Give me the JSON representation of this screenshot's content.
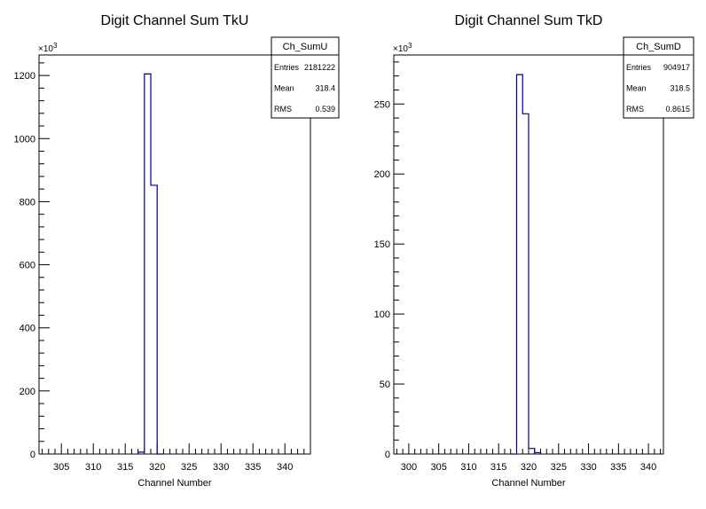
{
  "chart_data": [
    {
      "type": "bar",
      "histogram": true,
      "title": "Digit Channel Sum TkU",
      "xlabel": "Channel Number",
      "ylabel": "",
      "y_multiplier": "×10",
      "y_multiplier_exp": "3",
      "xlim": [
        301.5,
        344
      ],
      "ylim": [
        0,
        1265
      ],
      "x_ticks": [
        305,
        310,
        315,
        320,
        325,
        330,
        335,
        340
      ],
      "y_ticks": [
        0,
        200,
        400,
        600,
        800,
        1000,
        1200
      ],
      "bin_width": 1,
      "bins": [
        {
          "low": 317,
          "value": 6
        },
        {
          "low": 318,
          "value": 1205
        },
        {
          "low": 319,
          "value": 852
        },
        {
          "low": 320,
          "value": 0
        }
      ],
      "stats": {
        "name": "Ch_SumU",
        "rows": [
          {
            "label": "Entries",
            "value": "2181222"
          },
          {
            "label": "Mean",
            "value": "318.4"
          },
          {
            "label": "RMS",
            "value": "0.539"
          }
        ]
      },
      "line_color": "#000080"
    },
    {
      "type": "bar",
      "histogram": true,
      "title": "Digit Channel Sum TkD",
      "xlabel": "Channel Number",
      "ylabel": "",
      "y_multiplier": "×10",
      "y_multiplier_exp": "3",
      "xlim": [
        297.5,
        342.5
      ],
      "ylim": [
        0,
        285
      ],
      "x_ticks": [
        300,
        305,
        310,
        315,
        320,
        325,
        330,
        335,
        340
      ],
      "y_ticks": [
        0,
        50,
        100,
        150,
        200,
        250
      ],
      "bin_width": 1,
      "bins": [
        {
          "low": 317,
          "value": 0
        },
        {
          "low": 318,
          "value": 271
        },
        {
          "low": 319,
          "value": 243
        },
        {
          "low": 320,
          "value": 4
        },
        {
          "low": 321,
          "value": 1
        }
      ],
      "stats": {
        "name": "Ch_SumD",
        "rows": [
          {
            "label": "Entries",
            "value": "904917"
          },
          {
            "label": "Mean",
            "value": "318.5"
          },
          {
            "label": "RMS",
            "value": "0.8615"
          }
        ]
      },
      "line_color": "#000080"
    }
  ]
}
